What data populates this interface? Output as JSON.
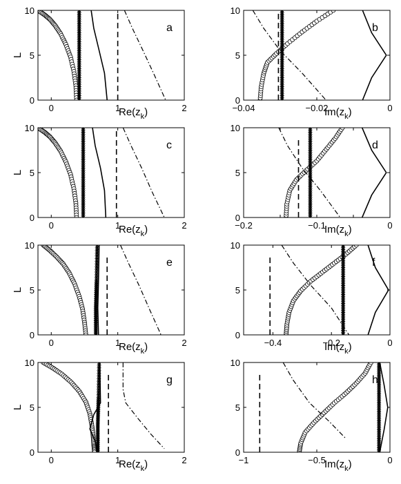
{
  "chart_data": [
    {
      "panel": "a",
      "type": "line",
      "letter": "a",
      "xlabel": "Re(z",
      "xlabel_sub": "k",
      "xlabel_end": ")",
      "ylabel": "L",
      "xlim": [
        -0.2,
        2
      ],
      "ylim": [
        0,
        10
      ],
      "xticks": [
        0,
        1,
        2
      ],
      "xtick_labels": [
        "0",
        "1",
        "2"
      ],
      "yticks": [
        0,
        5,
        10
      ],
      "ytick_labels": [
        "0",
        "5",
        "10"
      ],
      "series": [
        {
          "style": "circles",
          "x": [
            -0.2,
            -0.1,
            -0.02,
            0.06,
            0.14,
            0.22,
            0.29,
            0.34,
            0.37,
            0.38
          ],
          "y": [
            10,
            9.5,
            9.0,
            8.3,
            7.4,
            6.2,
            4.8,
            3.2,
            1.6,
            0
          ]
        },
        {
          "style": "stars",
          "x": [
            0.42,
            0.42
          ],
          "y": [
            0,
            10
          ]
        },
        {
          "style": "solid",
          "x": [
            0.6,
            0.64,
            0.72,
            0.8,
            0.84
          ],
          "y": [
            10,
            8,
            5.5,
            3,
            0
          ]
        },
        {
          "style": "dashed",
          "x": [
            1.0,
            1.0
          ],
          "y": [
            0,
            10
          ]
        },
        {
          "style": "dashdot",
          "x": [
            1.1,
            1.22,
            1.38,
            1.55,
            1.72
          ],
          "y": [
            10,
            8,
            5.5,
            2.8,
            0
          ]
        }
      ]
    },
    {
      "panel": "b",
      "type": "line",
      "letter": "b",
      "xlabel": "Im(z",
      "xlabel_sub": "k",
      "xlabel_end": ")",
      "ylabel": "",
      "xlim": [
        -0.04,
        0
      ],
      "ylim": [
        0,
        10
      ],
      "xticks": [
        -0.04,
        -0.02,
        0
      ],
      "xtick_labels": [
        "−0.04",
        "−0.02",
        "0"
      ],
      "yticks": [
        0,
        5,
        10
      ],
      "ytick_labels": [
        "0",
        "5",
        "10"
      ],
      "series": [
        {
          "style": "circles",
          "x": [
            -0.0355,
            -0.0352,
            -0.0345,
            -0.0335,
            -0.031,
            -0.028,
            -0.024,
            -0.02,
            -0.0155
          ],
          "y": [
            0,
            1.5,
            3,
            4.2,
            5.2,
            6.3,
            7.6,
            8.8,
            10
          ]
        },
        {
          "style": "stars",
          "x": [
            -0.0295,
            -0.0295
          ],
          "y": [
            0,
            10
          ]
        },
        {
          "style": "dashed",
          "x": [
            -0.0305,
            -0.0305
          ],
          "y": [
            0,
            10
          ]
        },
        {
          "style": "dashdot",
          "x": [
            -0.0375,
            -0.0345,
            -0.03,
            -0.024,
            -0.0175
          ],
          "y": [
            10,
            8,
            5.5,
            3,
            0
          ]
        },
        {
          "style": "solid",
          "x": [
            -0.0075,
            -0.005,
            -0.001,
            -0.005,
            -0.0075
          ],
          "y": [
            0,
            2.5,
            5,
            7.5,
            10
          ]
        }
      ]
    },
    {
      "panel": "c",
      "type": "line",
      "letter": "c",
      "xlabel": "Re(z",
      "xlabel_sub": "k",
      "xlabel_end": ")",
      "ylabel": "L",
      "xlim": [
        -0.2,
        2
      ],
      "ylim": [
        0,
        10
      ],
      "xticks": [
        0,
        1,
        2
      ],
      "xtick_labels": [
        "0",
        "1",
        "2"
      ],
      "yticks": [
        0,
        5,
        10
      ],
      "ytick_labels": [
        "0",
        "5",
        "10"
      ],
      "series": [
        {
          "style": "circles",
          "x": [
            -0.2,
            -0.1,
            -0.02,
            0.06,
            0.14,
            0.22,
            0.29,
            0.34,
            0.37,
            0.38
          ],
          "y": [
            10,
            9.5,
            9.0,
            8.3,
            7.4,
            6.2,
            4.8,
            3.2,
            1.6,
            0
          ]
        },
        {
          "style": "stars",
          "x": [
            0.48,
            0.48
          ],
          "y": [
            0,
            10
          ]
        },
        {
          "style": "solid",
          "x": [
            0.62,
            0.66,
            0.74,
            0.8,
            0.82
          ],
          "y": [
            10,
            8,
            5.5,
            3,
            0
          ]
        },
        {
          "style": "dashed",
          "x": [
            0.98,
            0.98
          ],
          "y": [
            0,
            10
          ]
        },
        {
          "style": "dashdot",
          "x": [
            1.08,
            1.2,
            1.36,
            1.52,
            1.7
          ],
          "y": [
            10,
            8,
            5.5,
            2.8,
            0
          ]
        }
      ]
    },
    {
      "panel": "d",
      "type": "line",
      "letter": "d",
      "xlabel": "Im(z",
      "xlabel_sub": "k",
      "xlabel_end": ")",
      "ylabel": "",
      "xlim": [
        -0.2,
        0
      ],
      "ylim": [
        0,
        10
      ],
      "xticks": [
        -0.2,
        -0.15,
        -0.1,
        -0.05,
        0
      ],
      "xtick_labels": [
        "−0.2",
        "",
        "−0.1",
        "",
        "0"
      ],
      "yticks": [
        0,
        5,
        10
      ],
      "ytick_labels": [
        "0",
        "5",
        "10"
      ],
      "series": [
        {
          "style": "circles",
          "x": [
            -0.142,
            -0.141,
            -0.137,
            -0.128,
            -0.115,
            -0.1,
            -0.087,
            -0.075,
            -0.065
          ],
          "y": [
            0,
            1.5,
            3,
            4.2,
            5.2,
            6.3,
            7.6,
            8.8,
            10
          ]
        },
        {
          "style": "stars",
          "x": [
            -0.109,
            -0.109
          ],
          "y": [
            0,
            10
          ]
        },
        {
          "style": "dashed",
          "x": [
            -0.125,
            -0.125
          ],
          "y": [
            0,
            9
          ]
        },
        {
          "style": "dashdot",
          "x": [
            -0.152,
            -0.14,
            -0.12,
            -0.095,
            -0.068
          ],
          "y": [
            10,
            8,
            5.5,
            3,
            0
          ]
        },
        {
          "style": "solid",
          "x": [
            -0.038,
            -0.025,
            -0.005,
            -0.025,
            -0.038
          ],
          "y": [
            0,
            2.5,
            5,
            7.5,
            10
          ]
        }
      ]
    },
    {
      "panel": "e",
      "type": "line",
      "letter": "e",
      "xlabel": "Re(z",
      "xlabel_sub": "k",
      "xlabel_end": ")",
      "ylabel": "L",
      "xlim": [
        -0.2,
        2
      ],
      "ylim": [
        0,
        10
      ],
      "xticks": [
        0,
        1,
        2
      ],
      "xtick_labels": [
        "0",
        "1",
        "2"
      ],
      "yticks": [
        0,
        5,
        10
      ],
      "ytick_labels": [
        "0",
        "5",
        "10"
      ],
      "series": [
        {
          "style": "circles",
          "x": [
            -0.12,
            -0.02,
            0.08,
            0.18,
            0.27,
            0.35,
            0.42,
            0.47,
            0.5,
            0.52
          ],
          "y": [
            10,
            9.4,
            8.7,
            7.9,
            6.9,
            5.7,
            4.3,
            2.9,
            1.4,
            0
          ]
        },
        {
          "style": "stars",
          "x": [
            0.69,
            0.68,
            0.67,
            0.67
          ],
          "y": [
            10,
            6,
            3,
            0
          ]
        },
        {
          "style": "solid",
          "x": [
            0.72,
            0.71,
            0.7,
            0.71
          ],
          "y": [
            10,
            6,
            3,
            0
          ]
        },
        {
          "style": "dashed",
          "x": [
            0.84,
            0.84
          ],
          "y": [
            0,
            9
          ]
        },
        {
          "style": "dashdot",
          "x": [
            1.04,
            1.16,
            1.32,
            1.48,
            1.65
          ],
          "y": [
            10,
            8,
            5.5,
            2.8,
            0
          ]
        }
      ]
    },
    {
      "panel": "f",
      "type": "line",
      "letter": "f",
      "xlabel": "Im(z",
      "xlabel_sub": "k",
      "xlabel_end": ")",
      "ylabel": "",
      "xlim": [
        -0.5,
        0
      ],
      "ylim": [
        0,
        10
      ],
      "xticks": [
        -0.4,
        -0.2,
        0
      ],
      "xtick_labels": [
        "−0.4",
        "−0.2",
        "0"
      ],
      "yticks": [
        0,
        5,
        10
      ],
      "ytick_labels": [
        "0",
        "5",
        "10"
      ],
      "series": [
        {
          "style": "circles",
          "x": [
            -0.355,
            -0.352,
            -0.345,
            -0.33,
            -0.305,
            -0.27,
            -0.23,
            -0.19,
            -0.15,
            -0.115
          ],
          "y": [
            0,
            1.2,
            2.5,
            3.8,
            4.9,
            6.0,
            7.0,
            8.0,
            9.0,
            10
          ]
        },
        {
          "style": "stars",
          "x": [
            -0.16,
            -0.16
          ],
          "y": [
            0,
            10
          ]
        },
        {
          "style": "dashed",
          "x": [
            -0.41,
            -0.41
          ],
          "y": [
            0,
            9
          ]
        },
        {
          "style": "dashdot",
          "x": [
            -0.37,
            -0.33,
            -0.27,
            -0.2,
            -0.14
          ],
          "y": [
            10,
            8,
            5.5,
            3,
            0
          ]
        },
        {
          "style": "solid",
          "x": [
            -0.075,
            -0.05,
            -0.005,
            -0.05,
            -0.075
          ],
          "y": [
            0,
            2.5,
            5,
            7.5,
            10
          ]
        }
      ]
    },
    {
      "panel": "g",
      "type": "line",
      "letter": "g",
      "xlabel": "Re(z",
      "xlabel_sub": "k",
      "xlabel_end": ")",
      "ylabel": "L",
      "xlim": [
        -0.2,
        2
      ],
      "ylim": [
        0,
        10
      ],
      "xticks": [
        0,
        1,
        2
      ],
      "xtick_labels": [
        "0",
        "1",
        "2"
      ],
      "yticks": [
        0,
        5,
        10
      ],
      "ytick_labels": [
        "0",
        "5",
        "10"
      ],
      "series": [
        {
          "style": "circles",
          "x": [
            -0.12,
            0.02,
            0.16,
            0.3,
            0.42,
            0.52,
            0.58,
            0.61,
            0.63,
            0.64,
            0.65
          ],
          "y": [
            10,
            9.4,
            8.7,
            7.8,
            6.8,
            5.6,
            4.3,
            3.0,
            1.8,
            0.8,
            0
          ]
        },
        {
          "style": "stars",
          "x": [
            0.72,
            0.71,
            0.7,
            0.7
          ],
          "y": [
            10,
            6,
            3,
            0
          ]
        },
        {
          "style": "solid",
          "x": [
            0.73,
            0.74,
            0.64,
            0.58,
            0.66,
            0.7
          ],
          "y": [
            10,
            5.5,
            4.2,
            2.6,
            1.2,
            0
          ]
        },
        {
          "style": "dashed",
          "x": [
            0.86,
            0.86
          ],
          "y": [
            0,
            9
          ]
        },
        {
          "style": "dashdot",
          "x": [
            1.08,
            1.08,
            1.12,
            1.3,
            1.5,
            1.7
          ],
          "y": [
            10,
            7,
            5.5,
            3.8,
            2.0,
            0.4
          ]
        }
      ]
    },
    {
      "panel": "h",
      "type": "line",
      "letter": "h",
      "xlabel": "Im(z",
      "xlabel_sub": "k",
      "xlabel_end": ")",
      "ylabel": "",
      "xlim": [
        -1,
        0
      ],
      "ylim": [
        0,
        10
      ],
      "xticks": [
        -1,
        -0.5,
        0
      ],
      "xtick_labels": [
        "−1",
        "−0.5",
        "0"
      ],
      "yticks": [
        0,
        5,
        10
      ],
      "ytick_labels": [
        "0",
        "5",
        "10"
      ],
      "series": [
        {
          "style": "circles",
          "x": [
            -0.62,
            -0.61,
            -0.58,
            -0.52,
            -0.45,
            -0.38,
            -0.3,
            -0.23,
            -0.17,
            -0.13
          ],
          "y": [
            0,
            1,
            2.2,
            3.3,
            4.4,
            5.5,
            6.6,
            7.7,
            8.8,
            10
          ]
        },
        {
          "style": "stars",
          "x": [
            -0.075,
            -0.075
          ],
          "y": [
            0,
            10
          ]
        },
        {
          "style": "dashed",
          "x": [
            -0.89,
            -0.89
          ],
          "y": [
            0,
            9
          ]
        },
        {
          "style": "dashdot",
          "x": [
            -0.73,
            -0.66,
            -0.55,
            -0.42,
            -0.3
          ],
          "y": [
            10,
            8,
            5.5,
            3.5,
            1.5
          ]
        },
        {
          "style": "solid",
          "x": [
            -0.07,
            -0.04,
            -0.015,
            -0.04,
            -0.07
          ],
          "y": [
            0,
            2.5,
            5,
            7.5,
            10
          ]
        }
      ]
    }
  ]
}
